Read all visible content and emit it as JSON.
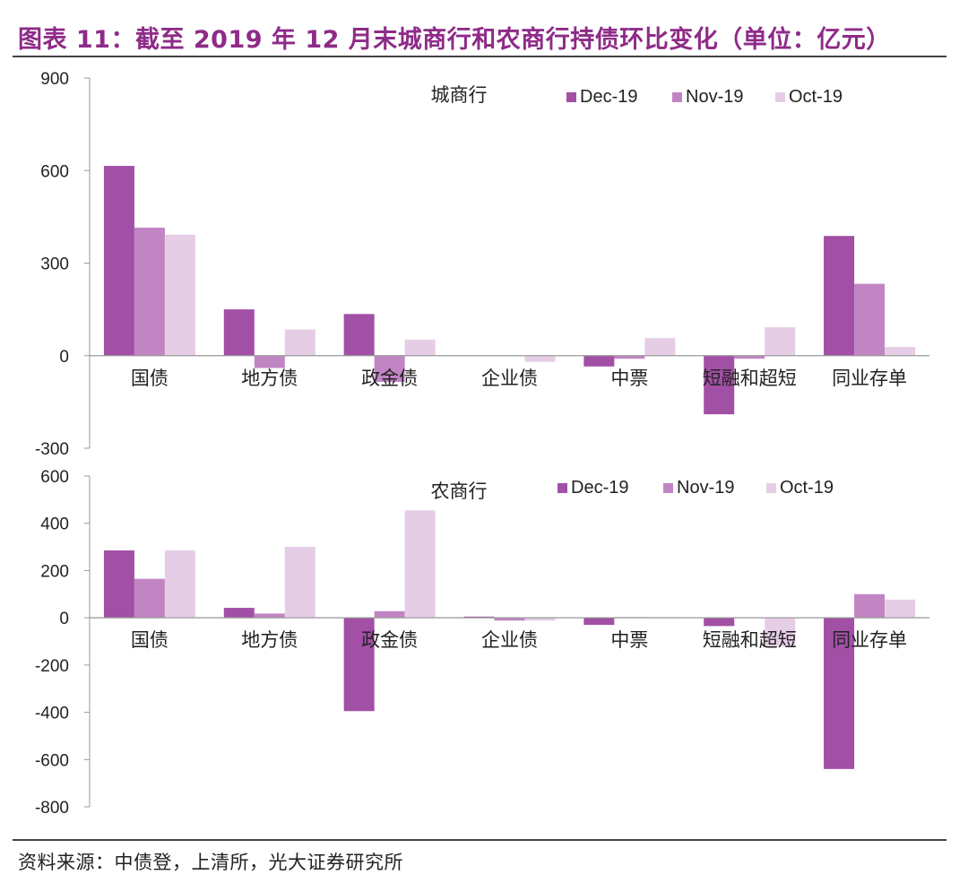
{
  "header": {
    "title": "图表 11：截至 2019 年 12 月末城商行和农商行持债环比变化（单位：亿元）"
  },
  "footer": {
    "source": "资料来源：中债登，上清所，光大证券研究所"
  },
  "colors": {
    "Dec-19": "#a24fa6",
    "Nov-19": "#c285c4",
    "Oct-19": "#e6cde6",
    "title": "#8e2b88",
    "axis": "#999999"
  },
  "chart_data": [
    {
      "type": "bar",
      "title": "城商行",
      "categories": [
        "国债",
        "地方债",
        "政金债",
        "企业债",
        "中票",
        "短融和超短",
        "同业存单"
      ],
      "series": [
        {
          "name": "Dec-19",
          "values": [
            615,
            150,
            135,
            0,
            -35,
            -190,
            388
          ]
        },
        {
          "name": "Nov-19",
          "values": [
            415,
            -40,
            -85,
            0,
            -10,
            -10,
            233
          ]
        },
        {
          "name": "Oct-19",
          "values": [
            392,
            85,
            52,
            -20,
            57,
            92,
            28
          ]
        }
      ],
      "yticks": [
        "900",
        "600",
        "300",
        "0",
        "-300"
      ],
      "ylim": [
        -300,
        900
      ],
      "legend": "top-right",
      "grid": false
    },
    {
      "type": "bar",
      "title": "农商行",
      "categories": [
        "国债",
        "地方债",
        "政金债",
        "企业债",
        "中票",
        "短融和超短",
        "同业存单"
      ],
      "series": [
        {
          "name": "Dec-19",
          "values": [
            285,
            42,
            -395,
            5,
            -30,
            -35,
            -640
          ]
        },
        {
          "name": "Nov-19",
          "values": [
            165,
            18,
            28,
            -12,
            3,
            0,
            100
          ]
        },
        {
          "name": "Oct-19",
          "values": [
            285,
            300,
            455,
            -12,
            3,
            -120,
            77
          ]
        }
      ],
      "yticks": [
        "600",
        "400",
        "200",
        "0",
        "-200",
        "-400",
        "-600",
        "-800"
      ],
      "ylim": [
        -800,
        600
      ],
      "legend": "top-right",
      "grid": false
    }
  ]
}
